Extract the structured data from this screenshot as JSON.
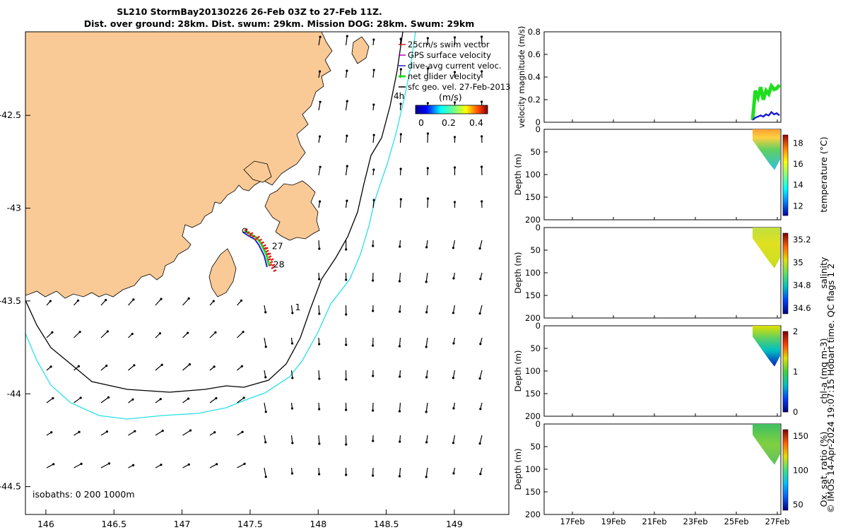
{
  "header": {
    "title_line1": "SL210 StormBay20130226 26-Feb 03Z to 27-Feb 11Z.",
    "title_line2": "Dist. over ground: 28km. Dist. swum: 29km. Mission DOG: 28km. Swum: 29km"
  },
  "credit": "© IMOS 14-Apr-2024 19:07:15 Hobart time. QC flags 1  2",
  "colors": {
    "land": "#FACA96",
    "isobath_0": "#000000",
    "isobath_200": "#000000",
    "isobath_1000": "#29E0E6",
    "swim_vector": "#E31A1C",
    "gps_surface": "#C000C0",
    "dive_avg": "#1F1FCF",
    "net_glider": "#1FDF1F",
    "sfc_geo": "#000000"
  },
  "chart_data": [
    {
      "type": "map",
      "x_ticks": [
        "146",
        "146.5",
        "147",
        "147.5",
        "148",
        "148.5",
        "149"
      ],
      "y_ticks": [
        "-42.5",
        "-43",
        "-43.5",
        "-44",
        "-44.5"
      ],
      "xlim": [
        145.85,
        149.4
      ],
      "ylim": [
        -44.65,
        -42.05
      ],
      "legend": {
        "position": "top-right",
        "items": [
          {
            "label": "25cm/s swim vector",
            "color": "#E31A1C"
          },
          {
            "label": "GPS surface velocity",
            "color": "#C000C0"
          },
          {
            "label": "dive-avg current veloc.",
            "color": "#1F1FCF"
          },
          {
            "label": "net glider velocity",
            "color": "#1FDF1F"
          },
          {
            "label": "sfc geo. vel. 27-Feb-2013",
            "color": "#000000"
          }
        ],
        "scale_label": "4h",
        "colorbar_title": "(m/s)",
        "colorbar_ticks": [
          "0",
          "0.2",
          "0.4"
        ]
      },
      "isobath_label": "isobaths: 0   200  1000m",
      "track_labels": [
        {
          "text": "27",
          "lon": 147.66,
          "lat": -43.22
        },
        {
          "text": "28",
          "lon": 147.67,
          "lat": -43.32
        },
        {
          "text": "1",
          "lon": 147.83,
          "lat": -43.55
        }
      ],
      "track": [
        [
          147.46,
          -43.12
        ],
        [
          147.5,
          -43.14
        ],
        [
          147.55,
          -43.16
        ],
        [
          147.58,
          -43.19
        ],
        [
          147.6,
          -43.22
        ],
        [
          147.62,
          -43.25
        ],
        [
          147.63,
          -43.28
        ],
        [
          147.64,
          -43.31
        ]
      ]
    },
    {
      "type": "line",
      "ylabel": "velocity magnitude (m/s)",
      "ylim": [
        0,
        0.8
      ],
      "y_ticks": [
        "0",
        "0.2",
        "0.4",
        "0.6",
        "0.8"
      ],
      "series": [
        {
          "name": "net glider velocity",
          "color": "#1FDF1F",
          "x": [
            0,
            0.1,
            0.2,
            0.3,
            0.4,
            0.5,
            0.6,
            0.7,
            0.8,
            0.9,
            1.0
          ],
          "values": [
            0.02,
            0.28,
            0.22,
            0.31,
            0.2,
            0.28,
            0.25,
            0.32,
            0.29,
            0.3,
            0.33
          ]
        },
        {
          "name": "dive-avg current veloc.",
          "color": "#1F1FCF",
          "x": [
            0,
            0.1,
            0.2,
            0.3,
            0.4,
            0.5,
            0.6,
            0.7,
            0.8,
            0.9,
            1.0
          ],
          "values": [
            0.02,
            0.04,
            0.05,
            0.06,
            0.05,
            0.07,
            0.06,
            0.09,
            0.07,
            0.08,
            0.06
          ]
        }
      ]
    },
    {
      "type": "heatmap",
      "ylabel": "Depth (m)",
      "clabel": "temperature (°C)",
      "ylim": [
        200,
        0
      ],
      "y_ticks": [
        "0",
        "50",
        "100",
        "150",
        "200"
      ],
      "c_ticks": [
        "12",
        "14",
        "16",
        "18"
      ],
      "max_depth": 90
    },
    {
      "type": "heatmap",
      "ylabel": "Depth (m)",
      "clabel": "salinity",
      "ylim": [
        200,
        0
      ],
      "y_ticks": [
        "0",
        "50",
        "100",
        "150",
        "200"
      ],
      "c_ticks": [
        "34.6",
        "34.8",
        "35",
        "35.2"
      ],
      "max_depth": 90
    },
    {
      "type": "heatmap",
      "ylabel": "Depth (m)",
      "clabel": "chl-a (mg m-3)",
      "ylim": [
        200,
        0
      ],
      "y_ticks": [
        "0",
        "50",
        "100",
        "150",
        "200"
      ],
      "c_ticks": [
        "0",
        "1",
        "2"
      ],
      "max_depth": 90
    },
    {
      "type": "heatmap",
      "ylabel": "Depth (m)",
      "clabel": "Ox. sat. ratio (%)",
      "ylim": [
        200,
        0
      ],
      "y_ticks": [
        "0",
        "50",
        "100",
        "150",
        "200"
      ],
      "c_ticks": [
        "50",
        "100",
        "150"
      ],
      "max_depth": 90,
      "x_ticks": [
        "17Feb",
        "19Feb",
        "21Feb",
        "23Feb",
        "25Feb",
        "27Feb"
      ]
    }
  ]
}
